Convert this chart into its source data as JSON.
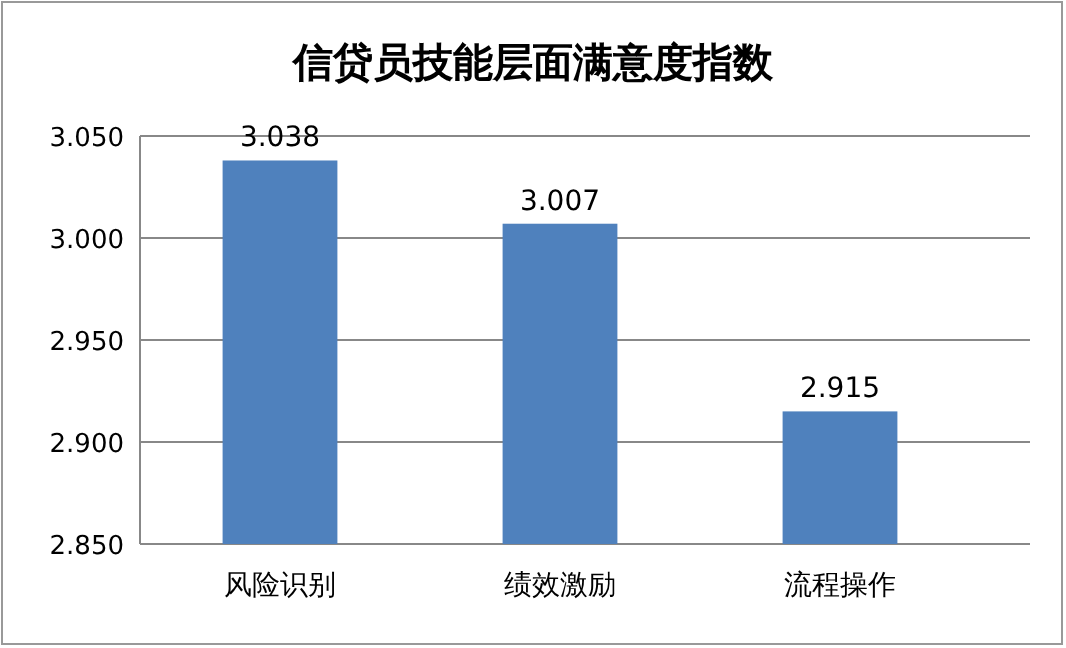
{
  "chart_data": {
    "type": "bar",
    "title": "信贷员技能层面满意度指数",
    "categories": [
      "风险识别",
      "绩效激励",
      "流程操作"
    ],
    "values": [
      3.038,
      3.007,
      2.915
    ],
    "color": "#4f81bd",
    "ylim": [
      2.85,
      3.05
    ],
    "yticks": [
      {
        "value": 2.85,
        "label": "2.850"
      },
      {
        "value": 2.9,
        "label": "2.900"
      },
      {
        "value": 2.95,
        "label": "2.950"
      },
      {
        "value": 3.0,
        "label": "3.000"
      },
      {
        "value": 3.05,
        "label": "3.050"
      }
    ],
    "grid": "y",
    "data_labels": true
  }
}
